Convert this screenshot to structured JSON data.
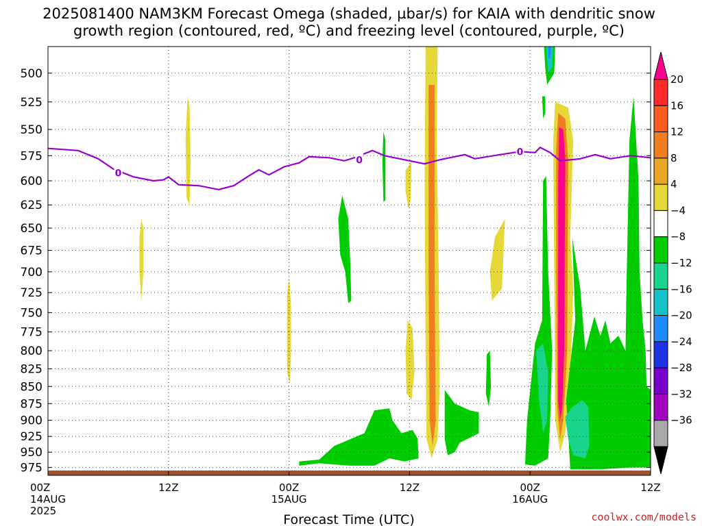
{
  "chart_data": {
    "type": "heatmap",
    "title": "2025081400 NAM3KM Forecast Omega (shaded, µbar/s) for KAIA with dendritic snow",
    "subtitle": "growth region (contoured, red, ºC) and freezing level (contoured, purple, ºC)",
    "xlabel": "Forecast Time (UTC)",
    "ylabel": "",
    "x_ticks": [
      {
        "hour": 0,
        "lines": [
          "00Z",
          "14AUG",
          "2025"
        ]
      },
      {
        "hour": 12,
        "lines": [
          "12Z"
        ]
      },
      {
        "hour": 24,
        "lines": [
          "00Z",
          "15AUG"
        ]
      },
      {
        "hour": 36,
        "lines": [
          "12Z"
        ]
      },
      {
        "hour": 48,
        "lines": [
          "00Z",
          "16AUG"
        ]
      },
      {
        "hour": 60,
        "lines": [
          "12Z"
        ]
      }
    ],
    "xlim": [
      0,
      60
    ],
    "y_ticks": [
      500,
      525,
      550,
      575,
      600,
      625,
      650,
      675,
      700,
      725,
      750,
      775,
      800,
      825,
      850,
      875,
      900,
      925,
      950,
      975
    ],
    "ylim": [
      478,
      988
    ],
    "y_scale": "log",
    "grid": true,
    "colorbar": {
      "labels": [
        "20",
        "16",
        "12",
        "8",
        "4",
        "−4",
        "−8",
        "−12",
        "−16",
        "−20",
        "−24",
        "−28",
        "−32",
        "−36"
      ],
      "colors": [
        "#ff0090",
        "#ff2a2a",
        "#ff5a1f",
        "#f07d20",
        "#e8a624",
        "#e6d838",
        "#ffffff",
        "#00cc00",
        "#19d48c",
        "#14c3c8",
        "#1e8cff",
        "#1e32e6",
        "#7800c8",
        "#a000c0",
        "#a8a8a8",
        "#000000"
      ]
    },
    "freezing_level": {
      "label": "0",
      "color": "#9900cc",
      "points": [
        [
          0,
          568
        ],
        [
          3,
          570
        ],
        [
          5,
          578
        ],
        [
          6.5,
          588
        ],
        [
          8.5,
          596
        ],
        [
          10.5,
          600
        ],
        [
          11.5,
          599
        ],
        [
          12,
          596
        ],
        [
          13,
          604
        ],
        [
          15,
          605
        ],
        [
          17,
          609
        ],
        [
          18.5,
          605
        ],
        [
          20,
          595
        ],
        [
          21,
          589
        ],
        [
          22,
          594
        ],
        [
          23.5,
          586
        ],
        [
          25,
          582
        ],
        [
          26,
          576
        ],
        [
          28,
          577
        ],
        [
          29.5,
          580
        ],
        [
          30.5,
          577
        ],
        [
          32.3,
          570
        ],
        [
          33.5,
          575
        ],
        [
          35,
          578
        ],
        [
          37.5,
          583
        ],
        [
          39,
          579
        ],
        [
          40.5,
          576
        ],
        [
          41.5,
          574
        ],
        [
          42.5,
          578
        ],
        [
          45,
          574
        ],
        [
          47,
          571
        ],
        [
          48.5,
          572
        ],
        [
          49,
          567
        ],
        [
          50,
          572
        ],
        [
          51,
          580
        ],
        [
          53,
          578
        ],
        [
          54.5,
          574
        ],
        [
          56,
          578
        ],
        [
          58,
          575
        ],
        [
          60,
          577
        ]
      ],
      "label_positions": [
        [
          7,
          592
        ],
        [
          31,
          579
        ],
        [
          47,
          571
        ]
      ]
    },
    "shaded_regions": [
      {
        "omega": 4,
        "color": "#e6d838",
        "points": [
          [
            13.9,
            520
          ],
          [
            14.1,
            530
          ],
          [
            14.2,
            580
          ],
          [
            14.1,
            625
          ],
          [
            13.8,
            618
          ],
          [
            13.7,
            560
          ]
        ]
      },
      {
        "omega": 4,
        "color": "#e6d838",
        "points": [
          [
            9.3,
            640
          ],
          [
            9.5,
            650
          ],
          [
            9.5,
            700
          ],
          [
            9.3,
            735
          ],
          [
            9.1,
            700
          ],
          [
            9.1,
            660
          ]
        ]
      },
      {
        "omega": 4,
        "color": "#e6d838",
        "points": [
          [
            24,
            705
          ],
          [
            24.2,
            740
          ],
          [
            24.2,
            800
          ],
          [
            24.1,
            845
          ],
          [
            23.8,
            830
          ],
          [
            23.8,
            730
          ]
        ]
      },
      {
        "omega": 4,
        "color": "#e6d838",
        "points": [
          [
            35.6,
            590
          ],
          [
            36.2,
            580
          ],
          [
            36.1,
            620
          ],
          [
            35.9,
            630
          ],
          [
            35.6,
            610
          ]
        ]
      },
      {
        "omega": 4,
        "color": "#e6d838",
        "points": [
          [
            35.8,
            760
          ],
          [
            36.3,
            770
          ],
          [
            36.5,
            830
          ],
          [
            36.2,
            870
          ],
          [
            35.7,
            860
          ],
          [
            35.6,
            800
          ]
        ]
      },
      {
        "omega": 4,
        "color": "#e6d838",
        "points": [
          [
            37.6,
            478
          ],
          [
            38.8,
            478
          ],
          [
            38.7,
            560
          ],
          [
            38.9,
            700
          ],
          [
            39,
            850
          ],
          [
            38.8,
            930
          ],
          [
            38.2,
            960
          ],
          [
            37.7,
            930
          ],
          [
            37.6,
            800
          ],
          [
            37.5,
            600
          ]
        ]
      },
      {
        "omega": 4,
        "color": "#e6d838",
        "points": [
          [
            44.5,
            660
          ],
          [
            45.5,
            640
          ],
          [
            45.2,
            720
          ],
          [
            44.2,
            735
          ],
          [
            44,
            700
          ]
        ]
      },
      {
        "omega": 4,
        "color": "#e6d838",
        "points": [
          [
            50.5,
            525
          ],
          [
            51.8,
            530
          ],
          [
            52.3,
            560
          ],
          [
            52,
            660
          ],
          [
            52.3,
            720
          ],
          [
            52,
            850
          ],
          [
            51.5,
            920
          ],
          [
            51,
            950
          ],
          [
            50.5,
            900
          ],
          [
            50.4,
            700
          ],
          [
            50.3,
            560
          ]
        ]
      },
      {
        "omega": 8,
        "color": "#f07d20",
        "points": [
          [
            37.9,
            510
          ],
          [
            38.5,
            510
          ],
          [
            38.5,
            700
          ],
          [
            38.6,
            900
          ],
          [
            38.3,
            940
          ],
          [
            38,
            900
          ],
          [
            37.9,
            700
          ]
        ]
      },
      {
        "omega": 8,
        "color": "#f07d20",
        "points": [
          [
            50.8,
            535
          ],
          [
            51.5,
            540
          ],
          [
            51.8,
            580
          ],
          [
            51.7,
            800
          ],
          [
            51.3,
            900
          ],
          [
            51,
            930
          ],
          [
            50.7,
            880
          ],
          [
            50.6,
            700
          ],
          [
            50.6,
            570
          ]
        ]
      },
      {
        "omega": 20,
        "color": "#ff0090",
        "points": [
          [
            50.9,
            548
          ],
          [
            51.3,
            550
          ],
          [
            51.5,
            580
          ],
          [
            51.4,
            800
          ],
          [
            51.2,
            880
          ],
          [
            51,
            900
          ],
          [
            50.8,
            870
          ],
          [
            50.8,
            600
          ]
        ]
      },
      {
        "omega": -4,
        "color": "#00cc00",
        "points": [
          [
            29.3,
            615
          ],
          [
            29.9,
            640
          ],
          [
            30.1,
            690
          ],
          [
            30.2,
            735
          ],
          [
            29.9,
            738
          ],
          [
            29.6,
            700
          ],
          [
            29.1,
            680
          ],
          [
            28.9,
            640
          ]
        ]
      },
      {
        "omega": -4,
        "color": "#00cc00",
        "points": [
          [
            33.4,
            552
          ],
          [
            33.6,
            560
          ],
          [
            33.6,
            620
          ],
          [
            33.4,
            622
          ],
          [
            33.3,
            580
          ]
        ]
      },
      {
        "omega": -4,
        "color": "#00cc00",
        "points": [
          [
            49.4,
            478
          ],
          [
            50.5,
            478
          ],
          [
            50.4,
            500
          ],
          [
            49.7,
            510
          ],
          [
            49.5,
            495
          ]
        ]
      },
      {
        "omega": -4,
        "color": "#00cc00",
        "points": [
          [
            49.2,
            520
          ],
          [
            49.5,
            520
          ],
          [
            49.5,
            535
          ],
          [
            49.3,
            540
          ]
        ]
      },
      {
        "omega": -4,
        "color": "#00cc00",
        "points": [
          [
            43.7,
            805
          ],
          [
            44,
            800
          ],
          [
            44.1,
            850
          ],
          [
            43.9,
            880
          ],
          [
            43.6,
            860
          ]
        ]
      },
      {
        "omega": -4,
        "color": "#00cc00",
        "points": [
          [
            25,
            965
          ],
          [
            27,
            962
          ],
          [
            28.5,
            940
          ],
          [
            30,
            930
          ],
          [
            31.5,
            920
          ],
          [
            32.5,
            885
          ],
          [
            34,
            882
          ],
          [
            34.3,
            900
          ],
          [
            35.2,
            920
          ],
          [
            36.3,
            915
          ],
          [
            36.8,
            928
          ],
          [
            36.9,
            960
          ],
          [
            35.5,
            965
          ],
          [
            34,
            960
          ],
          [
            32.5,
            972
          ],
          [
            30,
            972
          ],
          [
            27,
            968
          ],
          [
            25,
            972
          ]
        ]
      },
      {
        "omega": -4,
        "color": "#00cc00",
        "points": [
          [
            39.5,
            855
          ],
          [
            40.5,
            875
          ],
          [
            42,
            885
          ],
          [
            42.9,
            888
          ],
          [
            42.9,
            920
          ],
          [
            41,
            935
          ],
          [
            40.5,
            950
          ],
          [
            39.8,
            955
          ],
          [
            39.5,
            930
          ]
        ]
      },
      {
        "omega": -4,
        "color": "#00cc00",
        "points": [
          [
            47.5,
            970
          ],
          [
            47.7,
            900
          ],
          [
            48.5,
            790
          ],
          [
            49.2,
            760
          ],
          [
            49.3,
            600
          ],
          [
            49.6,
            595
          ],
          [
            49.8,
            700
          ],
          [
            50.2,
            800
          ],
          [
            50,
            900
          ],
          [
            49.8,
            960
          ],
          [
            48.5,
            972
          ]
        ]
      },
      {
        "omega": -4,
        "color": "#00cc00",
        "points": [
          [
            51.6,
            870
          ],
          [
            52.5,
            760
          ],
          [
            52.2,
            660
          ],
          [
            53,
            720
          ],
          [
            53.5,
            800
          ],
          [
            54.4,
            755
          ],
          [
            55,
            780
          ],
          [
            55.5,
            760
          ],
          [
            56,
            790
          ],
          [
            56.8,
            780
          ],
          [
            57.5,
            800
          ],
          [
            57.6,
            720
          ],
          [
            57.9,
            560
          ],
          [
            58.3,
            520
          ],
          [
            58.8,
            600
          ],
          [
            58.9,
            700
          ],
          [
            59.2,
            760
          ],
          [
            59.5,
            800
          ],
          [
            59.6,
            850
          ],
          [
            60,
            855
          ],
          [
            60,
            975
          ],
          [
            58,
            975
          ],
          [
            55,
            978
          ],
          [
            52,
            978
          ],
          [
            51.8,
            920
          ]
        ]
      },
      {
        "omega": -8,
        "color": "#19d48c",
        "points": [
          [
            51.5,
            895
          ],
          [
            52.2,
            880
          ],
          [
            53.2,
            870
          ],
          [
            53.8,
            880
          ],
          [
            53.9,
            940
          ],
          [
            53.5,
            960
          ],
          [
            52.3,
            955
          ],
          [
            51.8,
            930
          ]
        ]
      },
      {
        "omega": -8,
        "color": "#19d48c",
        "points": [
          [
            48.6,
            800
          ],
          [
            49.3,
            790
          ],
          [
            49.8,
            830
          ],
          [
            49.7,
            900
          ],
          [
            49.3,
            920
          ],
          [
            48.9,
            870
          ]
        ]
      },
      {
        "omega": -12,
        "color": "#14c3c8",
        "points": [
          [
            49.6,
            478
          ],
          [
            50.3,
            478
          ],
          [
            50.2,
            495
          ],
          [
            49.8,
            500
          ]
        ]
      },
      {
        "omega": -16,
        "color": "#1e8cff",
        "points": [
          [
            49.8,
            478
          ],
          [
            50.1,
            478
          ],
          [
            50,
            488
          ],
          [
            49.85,
            488
          ]
        ]
      }
    ],
    "ground": {
      "color": "#a0522d",
      "pressure": 980
    }
  }
}
